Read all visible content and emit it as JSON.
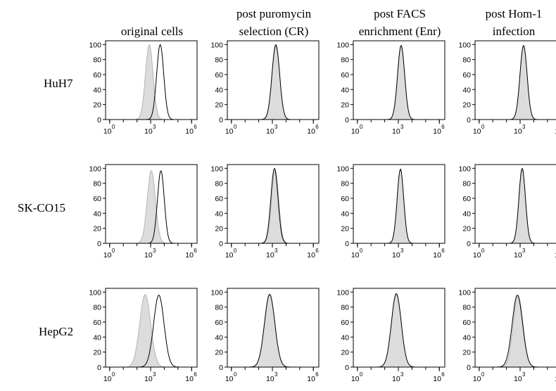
{
  "columns": [
    {
      "line1": "",
      "line2": "original cells"
    },
    {
      "line1": "post puromycin",
      "line2": "selection (CR)"
    },
    {
      "line1": "post FACS",
      "line2": "enrichment (Enr)"
    },
    {
      "line1": "post Hom-1",
      "line2": "infection"
    }
  ],
  "rows": [
    "HuH7",
    "SK-CO15",
    "HepG2"
  ],
  "chart_data": {
    "type": "area",
    "description_axes": "flow cytometry histograms, x log10 fluorescence, y normalized count",
    "x_scale": "log",
    "x_ticks": [
      {
        "base": "10",
        "exp": "0",
        "value": 1
      },
      {
        "base": "10",
        "exp": "3",
        "value": 1000
      },
      {
        "base": "10",
        "exp": "6",
        "value": 1000000
      }
    ],
    "xlim_log10": [
      -0.3,
      6.4
    ],
    "y_ticks": [
      "0",
      "20",
      "40",
      "60",
      "80",
      "100"
    ],
    "ylim": [
      0,
      105
    ],
    "grid": false,
    "panels": [
      [
        {
          "row": "HuH7",
          "column": "original cells",
          "filled": {
            "peak_log10": 2.9,
            "sigma_log10": 0.28,
            "peak": 100
          },
          "outline": {
            "peak_log10": 3.7,
            "sigma_log10": 0.26,
            "peak": 100
          }
        },
        {
          "row": "HuH7",
          "column": "post puromycin selection (CR)",
          "filled": {
            "peak_log10": 3.25,
            "sigma_log10": 0.28,
            "peak": 98
          },
          "outline": {
            "peak_log10": 3.25,
            "sigma_log10": 0.28,
            "peak": 100
          }
        },
        {
          "row": "HuH7",
          "column": "post FACS enrichment (Enr)",
          "filled": {
            "peak_log10": 3.2,
            "sigma_log10": 0.26,
            "peak": 98
          },
          "outline": {
            "peak_log10": 3.2,
            "sigma_log10": 0.26,
            "peak": 99
          }
        },
        {
          "row": "HuH7",
          "column": "post Hom-1 infection",
          "filled": {
            "peak_log10": 3.25,
            "sigma_log10": 0.26,
            "peak": 98
          },
          "outline": {
            "peak_log10": 3.25,
            "sigma_log10": 0.26,
            "peak": 99
          }
        }
      ],
      [
        {
          "row": "SK-CO15",
          "column": "original cells",
          "filled": {
            "peak_log10": 3.05,
            "sigma_log10": 0.3,
            "peak": 97
          },
          "outline": {
            "peak_log10": 3.75,
            "sigma_log10": 0.25,
            "peak": 97
          }
        },
        {
          "row": "SK-CO15",
          "column": "post puromycin selection (CR)",
          "filled": {
            "peak_log10": 3.2,
            "sigma_log10": 0.26,
            "peak": 98
          },
          "outline": {
            "peak_log10": 3.15,
            "sigma_log10": 0.26,
            "peak": 100
          }
        },
        {
          "row": "SK-CO15",
          "column": "post FACS enrichment (Enr)",
          "filled": {
            "peak_log10": 3.15,
            "sigma_log10": 0.24,
            "peak": 98
          },
          "outline": {
            "peak_log10": 3.15,
            "sigma_log10": 0.24,
            "peak": 99
          }
        },
        {
          "row": "SK-CO15",
          "column": "post Hom-1 infection",
          "filled": {
            "peak_log10": 3.15,
            "sigma_log10": 0.24,
            "peak": 98
          },
          "outline": {
            "peak_log10": 3.15,
            "sigma_log10": 0.24,
            "peak": 100
          }
        }
      ],
      [
        {
          "row": "HepG2",
          "column": "original cells",
          "filled": {
            "peak_log10": 2.6,
            "sigma_log10": 0.4,
            "peak": 97
          },
          "outline": {
            "peak_log10": 3.6,
            "sigma_log10": 0.38,
            "peak": 96
          }
        },
        {
          "row": "HepG2",
          "column": "post puromycin selection (CR)",
          "filled": {
            "peak_log10": 2.8,
            "sigma_log10": 0.38,
            "peak": 96
          },
          "outline": {
            "peak_log10": 2.8,
            "sigma_log10": 0.38,
            "peak": 97
          }
        },
        {
          "row": "HepG2",
          "column": "post FACS enrichment (Enr)",
          "filled": {
            "peak_log10": 2.85,
            "sigma_log10": 0.36,
            "peak": 97
          },
          "outline": {
            "peak_log10": 2.85,
            "sigma_log10": 0.36,
            "peak": 98
          }
        },
        {
          "row": "HepG2",
          "column": "post Hom-1 infection",
          "filled": {
            "peak_log10": 2.85,
            "sigma_log10": 0.36,
            "peak": 95
          },
          "outline": {
            "peak_log10": 2.8,
            "sigma_log10": 0.38,
            "peak": 96
          }
        }
      ]
    ]
  },
  "colors": {
    "fill": "#dcdcdc",
    "fill_stroke": "#a9a9a9",
    "outline": "#000000",
    "axis": "#000000"
  }
}
